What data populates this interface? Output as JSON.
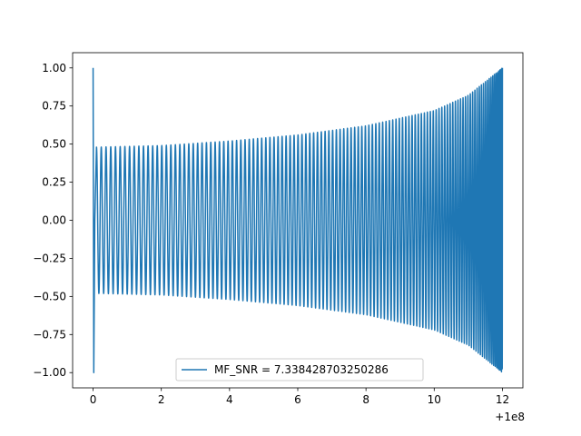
{
  "chart_data": {
    "type": "line",
    "title": "",
    "xlabel": "",
    "ylabel": "",
    "x_offset_label": "+1e8",
    "xlim": [
      -0.6,
      12.6
    ],
    "ylim": [
      -1.1,
      1.1
    ],
    "x_ticks": [
      0,
      2,
      4,
      6,
      8,
      10,
      12
    ],
    "x_tick_labels": [
      "0",
      "2",
      "4",
      "6",
      "8",
      "10",
      "12"
    ],
    "y_ticks": [
      1.0,
      0.75,
      0.5,
      0.25,
      0.0,
      -0.25,
      -0.5,
      -0.75,
      -1.0
    ],
    "y_tick_labels": [
      "1.00",
      "0.75",
      "0.50",
      "0.25",
      "0.00",
      "−0.25",
      "−0.50",
      "−0.75",
      "−1.00"
    ],
    "grid": false,
    "legend_position": "bottom-center",
    "series": [
      {
        "name": "MF_SNR = 7.338428703250286",
        "color": "#1f77b4",
        "x_start": 0,
        "x_end": 12,
        "initial_spike": [
          1.0,
          -1.0
        ],
        "envelope": [
          {
            "x": 0.1,
            "amp": 0.48
          },
          {
            "x": 2,
            "amp": 0.49
          },
          {
            "x": 4,
            "amp": 0.52
          },
          {
            "x": 6,
            "amp": 0.56
          },
          {
            "x": 8,
            "amp": 0.62
          },
          {
            "x": 10,
            "amp": 0.72
          },
          {
            "x": 11,
            "amp": 0.82
          },
          {
            "x": 12,
            "amp": 1.0
          }
        ],
        "cycles": 118
      }
    ]
  }
}
